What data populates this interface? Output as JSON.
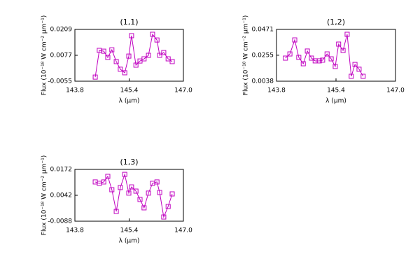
{
  "chart_data": [
    {
      "type": "line",
      "title": "(1,1)",
      "xlabel": "λ (μm)",
      "ylabel": "Flux (10⁻¹⁸ W cm⁻² μm⁻¹)",
      "xlim": [
        143.8,
        147.0
      ],
      "xticks": [
        143.8,
        145.4,
        {
          "value": 147.0,
          "label": "147.0"
        }
      ],
      "ylim": [
        -0.0055,
        0.0209
      ],
      "yticks": [
        -0.0055,
        0.0077,
        0.0209
      ],
      "x": [
        144.4,
        144.52,
        144.65,
        144.77,
        144.89,
        145.02,
        145.14,
        145.27,
        145.39,
        145.47,
        145.6,
        145.72,
        145.84,
        145.97,
        146.09,
        146.22,
        146.3,
        146.42,
        146.55,
        146.67
      ],
      "series": [
        {
          "color": "#c000c0",
          "values": [
            -0.0034,
            0.0102,
            0.0098,
            0.0066,
            0.0105,
            0.0045,
            0.0006,
            -0.0012,
            0.0073,
            0.0177,
            0.0027,
            0.0048,
            0.0059,
            0.0077,
            0.0184,
            0.0155,
            0.0077,
            0.0091,
            0.0059,
            0.0045
          ]
        }
      ]
    },
    {
      "type": "line",
      "title": "(1,2)",
      "xlabel": "λ (μm)",
      "ylabel": "Flux (10⁻¹⁸ W cm⁻² μm⁻¹)",
      "xlim": [
        143.8,
        147.0
      ],
      "xticks": [
        143.8,
        145.4,
        {
          "value": 147.0,
          "label": "147.0"
        }
      ],
      "ylim": [
        0.0038,
        0.0471
      ],
      "yticks": [
        0.0038,
        0.0255,
        0.0471
      ],
      "x": [
        144.04,
        144.16,
        144.29,
        144.4,
        144.52,
        144.63,
        144.74,
        144.84,
        144.95,
        145.04,
        145.16,
        145.27,
        145.38,
        145.47,
        145.59,
        145.7,
        145.81,
        145.91,
        146.02,
        146.13
      ],
      "series": [
        {
          "color": "#c000c0",
          "values": [
            0.0231,
            0.0266,
            0.0383,
            0.0237,
            0.0184,
            0.029,
            0.0231,
            0.0208,
            0.0208,
            0.0214,
            0.0266,
            0.0225,
            0.0161,
            0.0348,
            0.0295,
            0.043,
            0.0079,
            0.0178,
            0.0138,
            0.0079
          ]
        }
      ]
    },
    {
      "type": "line",
      "title": "(1,3)",
      "xlabel": "λ (μm)",
      "ylabel": "Flux (10⁻¹⁸ W cm⁻² μm⁻¹)",
      "xlim": [
        143.8,
        147.0
      ],
      "xticks": [
        143.8,
        145.4,
        {
          "value": 147.0,
          "label": "147.0"
        }
      ],
      "ylim": [
        -0.0088,
        0.0172
      ],
      "yticks": [
        -0.0088,
        0.0042,
        0.0172
      ],
      "x": [
        144.4,
        144.52,
        144.65,
        144.77,
        144.89,
        145.02,
        145.14,
        145.27,
        145.39,
        145.47,
        145.6,
        145.72,
        145.84,
        145.97,
        146.09,
        146.22,
        146.3,
        146.42,
        146.55,
        146.67
      ],
      "series": [
        {
          "color": "#c000c0",
          "values": [
            0.0109,
            0.0102,
            0.0109,
            0.0137,
            0.007,
            -0.0039,
            0.0081,
            0.0147,
            0.0053,
            0.0084,
            0.0063,
            0.0021,
            -0.0021,
            0.0053,
            0.0102,
            0.0109,
            0.0056,
            -0.0067,
            -0.0014,
            0.0049
          ]
        }
      ]
    }
  ]
}
